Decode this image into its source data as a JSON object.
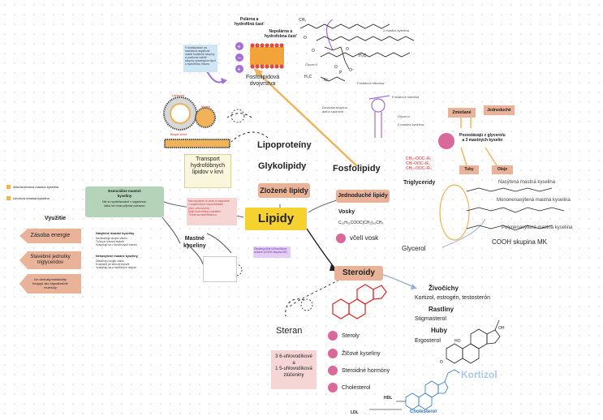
{
  "center": {
    "title": "Lipidy"
  },
  "branches": {
    "lipoproteiny": "Lipoproteíny",
    "glykolipidy": "Glykolipidy",
    "zlozene": "Zložené lipidy",
    "fosfolipidy": "Fosfolipidy",
    "jednoduche": "Jednoduché lipidy",
    "steroidy": "Steroidy",
    "mastne_kyseliny": "Mastné\nkyseliny",
    "glycerol": "Glycerol"
  },
  "transport_note": "Transport\nhydrofóbnych\nlipidov v krvi",
  "phospholipid": {
    "polar_head": "Polárna a\nhydrofilná časť",
    "nonpolar_tail": "Nepolárna a\nhydrofobna časť",
    "bilayer": "Fosfolipidová\ndvojvrstva",
    "liposome": "Liposome",
    "micelle": "Micelle",
    "bilayer_sheet": "Bilayer sheet",
    "charge_note": "V fosfolipidoch sa nachádza negatívne nabité fosfátové skupiny a pozitívne nabité skupiny vytvárajúce dipól s hydrofilnou hlavou",
    "labels": {
      "fatty_acid_2": "2 mastná kyselina",
      "glycerol": "Glycerol",
      "phosphate_head": "Fosfátová hlavička",
      "choline_group": "Dusíkatá skupina\nalebo sacharid",
      "phosphate_head_2": "Fosfátová hlavička",
      "glycerol_2": "Glycerol",
      "fatty_acid_2b": "2 mastná kyselina"
    },
    "formula": {
      "ch3_top": "CH₃",
      "h3c_mid": "H₃C",
      "h3c_low": "H₃C",
      "o1": "O",
      "o2": "O",
      "o3": "O",
      "o4": "O",
      "p": "P",
      "n": "N⁺",
      "o_minus": "O⁻"
    }
  },
  "triglyceride": {
    "title": "Triglyceridy",
    "formula_lines": [
      "CH₂–OOC–R₁",
      "CH–OOC–R₂",
      "CH₂–OOC–R₃"
    ],
    "composition": "Pozostávajú z glycerolu\na 3 mastných kyselín",
    "zmiesane": "Zmiešané",
    "jednoduche": "Jednoduché",
    "tuky": "Tuky",
    "oleje": "Oleje",
    "nasytena": "Nasýtená mastná kyselina",
    "mononenasytena": "Mononenasýtená mastná kyselina",
    "polynenasytena": "Polynenasýtená mastná kyselina",
    "cooh": "COOH skupina MK"
  },
  "vosky": {
    "title": "Vosky",
    "formula": "C₁₅H₃₁COOC(CH₂)₃₀CH₃",
    "example": "včelí vosk"
  },
  "legend": {
    "alfa": "Alfa-linolenová mastná kyselina",
    "linolova": "Linolová mastná kyselina"
  },
  "essential": {
    "title": "Esenciálne mastné\nkyseliny",
    "body": "Nie sú syntetizované v organizme,\nlatka ich musí prijímať potravou"
  },
  "vyuzitie": {
    "title": "Využitie",
    "items": [
      "Zásoba energie",
      "Stavebné jednotky\ntriglyceridov",
      "Ich deriváty/metabolity\nfungujú ako signalizačné\nmolekuly"
    ]
  },
  "fa_types": {
    "nasytene_title": "Nasýtené mastné kyseliny",
    "nasytene_body": "Neobsahujú dvojitú väzbu\nTuhá pri izbovej teplote\nVyskytujú sa v živočíšnych tukoch",
    "nenasytene_title": "Nenasýtené mastné kyseliny",
    "nenasytene_body": "Obsahujú dvojitú väzbu\nKvapalné pri izbovej teplote\nVyskytujú sa v rastlinných olejoch"
  },
  "pink_note": "Nerozpustné vo vode a rozpustné\nv organických rozpúšťadlách\n(éter, chloroform)\nMajú hydrofóbny charakter\nTvoria sa esterifikáciou",
  "purple_note": "Obsahujú dlhé uhľovodíkové\nreťazce (COOH skupina MK)",
  "steroidy": {
    "steran": "Steran",
    "steran_note": "3 6-uhlovodíkové\na\n1 5-uhlovodíková\nzlúčeniny",
    "items": [
      "Steroly",
      "Žlčové kyseliny",
      "Steroidné hormóny",
      "Cholesterol"
    ],
    "zivocichy": "Živočíchy",
    "zivocichy_list": "Kortizol, estrogén, testosterón",
    "rastliny": "Rastliny",
    "rastliny_list": "Stigmasterol",
    "huby": "Huby",
    "huby_list": "Ergosterol",
    "kortizol": "Kortizol",
    "cholesterol": "Cholesterol",
    "hdl": "HDL",
    "ldl": "LDL",
    "oh": "OH",
    "ho": "HO",
    "o": "O"
  },
  "colors": {
    "gold": "#f6d230",
    "salmon": "#e9b39a",
    "green": "#b5d3b8",
    "purple": "#a36fd6",
    "pink": "#d9699a"
  }
}
